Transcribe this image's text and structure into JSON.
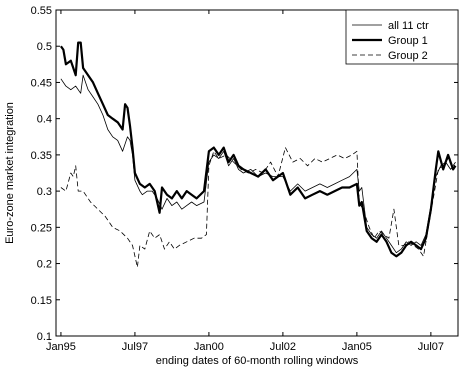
{
  "chart_data": {
    "type": "line",
    "title": "",
    "xlabel": "ending dates of 60-month rolling windows",
    "ylabel": "Euro-zone market integration",
    "xlim": [
      "1994-11",
      "2008-06"
    ],
    "ylim": [
      0.1,
      0.55
    ],
    "xticks": [
      {
        "date": "1995-01",
        "label": "Jan95"
      },
      {
        "date": "1997-07",
        "label": "Jul97"
      },
      {
        "date": "2000-01",
        "label": "Jan00"
      },
      {
        "date": "2002-07",
        "label": "Jul02"
      },
      {
        "date": "2005-01",
        "label": "Jan05"
      },
      {
        "date": "2007-07",
        "label": "Jul07"
      }
    ],
    "yticks": [
      {
        "value": 0.1,
        "label": "0.1"
      },
      {
        "value": 0.15,
        "label": "0.15"
      },
      {
        "value": 0.2,
        "label": "0.2"
      },
      {
        "value": 0.25,
        "label": "0.25"
      },
      {
        "value": 0.3,
        "label": "0.3"
      },
      {
        "value": 0.35,
        "label": "0.35"
      },
      {
        "value": 0.4,
        "label": "0.4"
      },
      {
        "value": 0.45,
        "label": "0.45"
      },
      {
        "value": 0.5,
        "label": "0.5"
      },
      {
        "value": 0.55,
        "label": "0.55"
      }
    ],
    "grid": false,
    "legend_position": "top-right",
    "series": [
      {
        "name": "all 11 ctr",
        "style": "thin-solid",
        "color": "#000000",
        "points": [
          [
            "1995-01",
            0.455
          ],
          [
            "1995-03",
            0.445
          ],
          [
            "1995-05",
            0.44
          ],
          [
            "1995-07",
            0.445
          ],
          [
            "1995-09",
            0.435
          ],
          [
            "1995-10",
            0.46
          ],
          [
            "1995-12",
            0.44
          ],
          [
            "1996-02",
            0.43
          ],
          [
            "1996-04",
            0.42
          ],
          [
            "1996-06",
            0.405
          ],
          [
            "1996-08",
            0.385
          ],
          [
            "1996-10",
            0.375
          ],
          [
            "1996-12",
            0.37
          ],
          [
            "1997-02",
            0.355
          ],
          [
            "1997-04",
            0.375
          ],
          [
            "1997-05",
            0.37
          ],
          [
            "1997-06",
            0.35
          ],
          [
            "1997-07",
            0.315
          ],
          [
            "1997-09",
            0.3
          ],
          [
            "1997-10",
            0.295
          ],
          [
            "1997-12",
            0.3
          ],
          [
            "1998-02",
            0.3
          ],
          [
            "1998-04",
            0.29
          ],
          [
            "1998-06",
            0.275
          ],
          [
            "1998-08",
            0.29
          ],
          [
            "1998-10",
            0.28
          ],
          [
            "1998-12",
            0.285
          ],
          [
            "1999-02",
            0.275
          ],
          [
            "1999-04",
            0.28
          ],
          [
            "1999-06",
            0.285
          ],
          [
            "1999-08",
            0.28
          ],
          [
            "1999-11",
            0.285
          ],
          [
            "2000-01",
            0.34
          ],
          [
            "2000-03",
            0.35
          ],
          [
            "2000-05",
            0.345
          ],
          [
            "2000-07",
            0.355
          ],
          [
            "2000-09",
            0.335
          ],
          [
            "2000-11",
            0.345
          ],
          [
            "2001-01",
            0.33
          ],
          [
            "2001-03",
            0.325
          ],
          [
            "2001-06",
            0.33
          ],
          [
            "2001-09",
            0.32
          ],
          [
            "2001-12",
            0.325
          ],
          [
            "2002-03",
            0.32
          ],
          [
            "2002-07",
            0.32
          ],
          [
            "2002-10",
            0.3
          ],
          [
            "2003-01",
            0.31
          ],
          [
            "2003-04",
            0.3
          ],
          [
            "2003-07",
            0.305
          ],
          [
            "2003-10",
            0.31
          ],
          [
            "2004-01",
            0.305
          ],
          [
            "2004-04",
            0.31
          ],
          [
            "2004-07",
            0.315
          ],
          [
            "2004-10",
            0.32
          ],
          [
            "2005-01",
            0.33
          ],
          [
            "2005-02",
            0.3
          ],
          [
            "2005-03",
            0.305
          ],
          [
            "2005-05",
            0.25
          ],
          [
            "2005-07",
            0.24
          ],
          [
            "2005-09",
            0.235
          ],
          [
            "2005-11",
            0.245
          ],
          [
            "2006-01",
            0.235
          ],
          [
            "2006-03",
            0.225
          ],
          [
            "2006-05",
            0.215
          ],
          [
            "2006-07",
            0.22
          ],
          [
            "2006-09",
            0.23
          ],
          [
            "2006-11",
            0.225
          ],
          [
            "2007-01",
            0.23
          ],
          [
            "2007-03",
            0.225
          ],
          [
            "2007-05",
            0.24
          ],
          [
            "2007-07",
            0.28
          ],
          [
            "2007-09",
            0.32
          ],
          [
            "2007-11",
            0.335
          ],
          [
            "2008-01",
            0.34
          ],
          [
            "2008-03",
            0.33
          ],
          [
            "2008-05",
            0.34
          ]
        ]
      },
      {
        "name": "Group 1",
        "style": "thick-solid",
        "color": "#000000",
        "points": [
          [
            "1995-01",
            0.5
          ],
          [
            "1995-02",
            0.495
          ],
          [
            "1995-03",
            0.475
          ],
          [
            "1995-05",
            0.48
          ],
          [
            "1995-06",
            0.47
          ],
          [
            "1995-07",
            0.46
          ],
          [
            "1995-08",
            0.505
          ],
          [
            "1995-09",
            0.505
          ],
          [
            "1995-10",
            0.47
          ],
          [
            "1995-12",
            0.46
          ],
          [
            "1996-02",
            0.45
          ],
          [
            "1996-04",
            0.435
          ],
          [
            "1996-06",
            0.42
          ],
          [
            "1996-08",
            0.405
          ],
          [
            "1996-10",
            0.4
          ],
          [
            "1996-12",
            0.395
          ],
          [
            "1997-02",
            0.385
          ],
          [
            "1997-03",
            0.42
          ],
          [
            "1997-04",
            0.415
          ],
          [
            "1997-05",
            0.39
          ],
          [
            "1997-06",
            0.36
          ],
          [
            "1997-07",
            0.325
          ],
          [
            "1997-09",
            0.31
          ],
          [
            "1997-11",
            0.305
          ],
          [
            "1998-01",
            0.31
          ],
          [
            "1998-03",
            0.3
          ],
          [
            "1998-05",
            0.27
          ],
          [
            "1998-06",
            0.305
          ],
          [
            "1998-08",
            0.295
          ],
          [
            "1998-10",
            0.29
          ],
          [
            "1998-12",
            0.3
          ],
          [
            "1999-02",
            0.29
          ],
          [
            "1999-04",
            0.3
          ],
          [
            "1999-06",
            0.295
          ],
          [
            "1999-08",
            0.29
          ],
          [
            "1999-11",
            0.3
          ],
          [
            "2000-01",
            0.355
          ],
          [
            "2000-03",
            0.36
          ],
          [
            "2000-05",
            0.35
          ],
          [
            "2000-07",
            0.36
          ],
          [
            "2000-09",
            0.34
          ],
          [
            "2000-11",
            0.35
          ],
          [
            "2001-01",
            0.335
          ],
          [
            "2001-03",
            0.33
          ],
          [
            "2001-06",
            0.325
          ],
          [
            "2001-09",
            0.32
          ],
          [
            "2001-12",
            0.33
          ],
          [
            "2002-03",
            0.315
          ],
          [
            "2002-07",
            0.325
          ],
          [
            "2002-10",
            0.295
          ],
          [
            "2003-01",
            0.305
          ],
          [
            "2003-04",
            0.29
          ],
          [
            "2003-07",
            0.295
          ],
          [
            "2003-10",
            0.3
          ],
          [
            "2004-01",
            0.295
          ],
          [
            "2004-04",
            0.3
          ],
          [
            "2004-07",
            0.305
          ],
          [
            "2004-10",
            0.305
          ],
          [
            "2005-01",
            0.31
          ],
          [
            "2005-02",
            0.28
          ],
          [
            "2005-03",
            0.285
          ],
          [
            "2005-05",
            0.245
          ],
          [
            "2005-07",
            0.235
          ],
          [
            "2005-09",
            0.23
          ],
          [
            "2005-11",
            0.24
          ],
          [
            "2006-01",
            0.23
          ],
          [
            "2006-03",
            0.215
          ],
          [
            "2006-05",
            0.21
          ],
          [
            "2006-07",
            0.215
          ],
          [
            "2006-09",
            0.225
          ],
          [
            "2006-11",
            0.23
          ],
          [
            "2007-01",
            0.225
          ],
          [
            "2007-03",
            0.22
          ],
          [
            "2007-05",
            0.235
          ],
          [
            "2007-07",
            0.275
          ],
          [
            "2007-09",
            0.33
          ],
          [
            "2007-10",
            0.355
          ],
          [
            "2007-12",
            0.33
          ],
          [
            "2008-02",
            0.35
          ],
          [
            "2008-04",
            0.33
          ],
          [
            "2008-05",
            0.335
          ]
        ]
      },
      {
        "name": "Group 2",
        "style": "dashed",
        "color": "#000000",
        "points": [
          [
            "1995-01",
            0.305
          ],
          [
            "1995-03",
            0.3
          ],
          [
            "1995-05",
            0.325
          ],
          [
            "1995-06",
            0.32
          ],
          [
            "1995-07",
            0.335
          ],
          [
            "1995-08",
            0.3
          ],
          [
            "1995-10",
            0.3
          ],
          [
            "1996-01",
            0.285
          ],
          [
            "1996-04",
            0.275
          ],
          [
            "1996-07",
            0.265
          ],
          [
            "1996-10",
            0.25
          ],
          [
            "1997-01",
            0.245
          ],
          [
            "1997-04",
            0.235
          ],
          [
            "1997-06",
            0.225
          ],
          [
            "1997-08",
            0.195
          ],
          [
            "1997-09",
            0.225
          ],
          [
            "1997-11",
            0.22
          ],
          [
            "1998-01",
            0.245
          ],
          [
            "1998-03",
            0.235
          ],
          [
            "1998-05",
            0.24
          ],
          [
            "1998-07",
            0.22
          ],
          [
            "1998-09",
            0.23
          ],
          [
            "1998-11",
            0.22
          ],
          [
            "1999-01",
            0.225
          ],
          [
            "1999-04",
            0.23
          ],
          [
            "1999-07",
            0.235
          ],
          [
            "1999-10",
            0.235
          ],
          [
            "1999-12",
            0.24
          ],
          [
            "2000-01",
            0.335
          ],
          [
            "2000-03",
            0.355
          ],
          [
            "2000-05",
            0.345
          ],
          [
            "2000-08",
            0.35
          ],
          [
            "2000-11",
            0.34
          ],
          [
            "2001-02",
            0.33
          ],
          [
            "2001-05",
            0.325
          ],
          [
            "2001-08",
            0.33
          ],
          [
            "2001-11",
            0.325
          ],
          [
            "2002-02",
            0.34
          ],
          [
            "2002-05",
            0.32
          ],
          [
            "2002-08",
            0.36
          ],
          [
            "2002-11",
            0.34
          ],
          [
            "2003-02",
            0.345
          ],
          [
            "2003-05",
            0.335
          ],
          [
            "2003-08",
            0.345
          ],
          [
            "2003-11",
            0.34
          ],
          [
            "2004-02",
            0.345
          ],
          [
            "2004-05",
            0.35
          ],
          [
            "2004-08",
            0.345
          ],
          [
            "2004-11",
            0.35
          ],
          [
            "2005-01",
            0.355
          ],
          [
            "2005-02",
            0.285
          ],
          [
            "2005-04",
            0.27
          ],
          [
            "2005-06",
            0.25
          ],
          [
            "2005-08",
            0.235
          ],
          [
            "2005-10",
            0.245
          ],
          [
            "2005-12",
            0.24
          ],
          [
            "2006-02",
            0.235
          ],
          [
            "2006-04",
            0.275
          ],
          [
            "2006-06",
            0.225
          ],
          [
            "2006-08",
            0.225
          ],
          [
            "2006-10",
            0.23
          ],
          [
            "2006-12",
            0.225
          ],
          [
            "2007-02",
            0.22
          ],
          [
            "2007-04",
            0.21
          ],
          [
            "2007-06",
            0.25
          ],
          [
            "2007-08",
            0.29
          ],
          [
            "2007-10",
            0.33
          ],
          [
            "2007-12",
            0.335
          ],
          [
            "2008-02",
            0.345
          ],
          [
            "2008-04",
            0.33
          ],
          [
            "2008-05",
            0.34
          ]
        ]
      }
    ]
  }
}
